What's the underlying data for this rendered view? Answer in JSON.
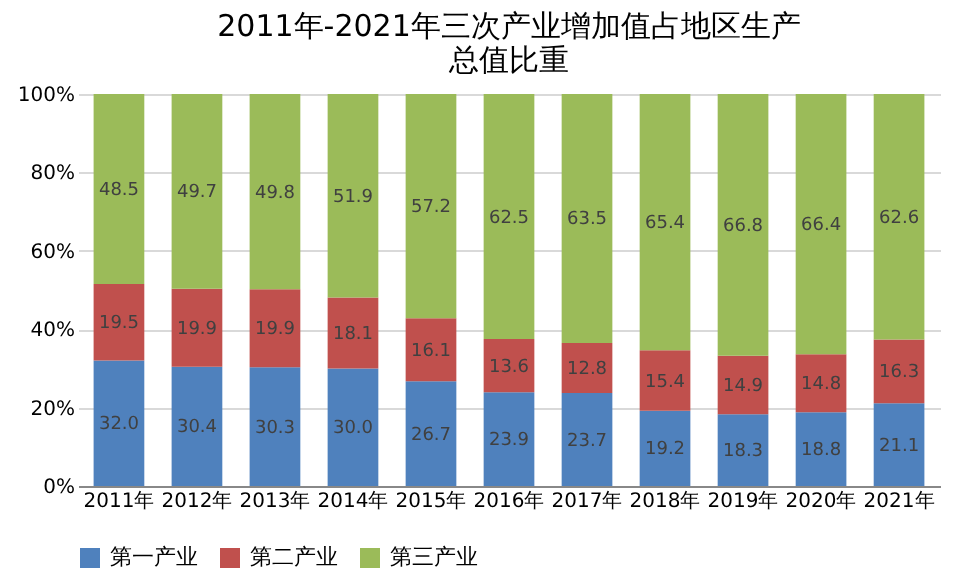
{
  "chart_data": {
    "type": "bar",
    "stacked": true,
    "title": "2011年-2021年三次产业增加值占地区生产总值比重",
    "categories": [
      "2011年",
      "2012年",
      "2013年",
      "2014年",
      "2015年",
      "2016年",
      "2017年",
      "2018年",
      "2019年",
      "2020年",
      "2021年"
    ],
    "series": [
      {
        "name": "第一产业",
        "color": "#4f81bd",
        "values": [
          32.0,
          30.4,
          30.3,
          30.0,
          26.7,
          23.9,
          23.7,
          19.2,
          18.3,
          18.8,
          21.1
        ],
        "value_labels": [
          "32.0",
          "30.4",
          "30.3",
          "30.0",
          "26.7",
          "23.9",
          "23.7",
          "19.2",
          "18.3",
          "18.8",
          "21.1"
        ]
      },
      {
        "name": "第二产业",
        "color": "#c0504d",
        "values": [
          19.5,
          19.9,
          19.9,
          18.1,
          16.1,
          13.6,
          12.8,
          15.4,
          14.9,
          14.8,
          16.3
        ],
        "value_labels": [
          "19.5",
          "19.9",
          "19.9",
          "18.1",
          "16.1",
          "13.6",
          "12.8",
          "15.4",
          "14.9",
          "14.8",
          "16.3"
        ]
      },
      {
        "name": "第三产业",
        "color": "#9bbb59",
        "values": [
          48.5,
          49.7,
          49.8,
          51.9,
          57.2,
          62.5,
          63.5,
          65.4,
          66.8,
          66.4,
          62.6
        ],
        "value_labels": [
          "48.5",
          "49.7",
          "49.8",
          "51.9",
          "57.2",
          "62.5",
          "63.5",
          "65.4",
          "66.8",
          "66.4",
          "62.6"
        ]
      }
    ],
    "ylim": [
      0,
      100
    ],
    "yticks": [
      {
        "value": 0,
        "label": "0%"
      },
      {
        "value": 20,
        "label": "20%"
      },
      {
        "value": 40,
        "label": "40%"
      },
      {
        "value": 60,
        "label": "60%"
      },
      {
        "value": 80,
        "label": "80%"
      },
      {
        "value": 100,
        "label": "100%"
      }
    ],
    "grid": "y",
    "legend": "bottom"
  }
}
